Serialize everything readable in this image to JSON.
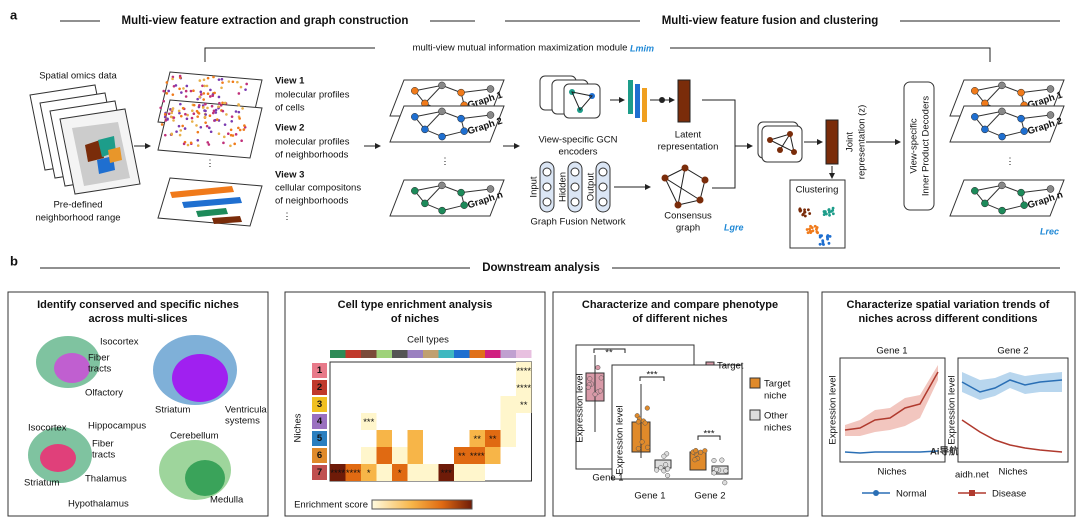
{
  "panel_a": {
    "label": "a",
    "header_left": "Multi-view feature extraction and graph construction",
    "header_right": "Multi-view feature fusion and clustering",
    "mim_module": "multi-view mutual information maximization module",
    "lmim": "Lmim",
    "spatial_title": "Spatial omics data",
    "neighborhood": [
      "Pre-defined",
      "neighborhood range"
    ],
    "views": [
      {
        "name": "View 1",
        "desc": [
          "molecular profiles",
          "of cells"
        ]
      },
      {
        "name": "View 2",
        "desc": [
          "molecular profiles",
          "of neighborhoods"
        ]
      },
      {
        "name": "View 3",
        "desc": [
          "cellular compositons",
          "of neighborhoods"
        ]
      }
    ],
    "ellipsis": "⋮",
    "graphs_left": [
      "Graph 1",
      "Graph 2",
      "Graph n"
    ],
    "gcn": [
      "View-specific GCN",
      "encoders"
    ],
    "latent": [
      "Latent",
      "representation"
    ],
    "fusion_layers": [
      "Input",
      "Hidden",
      "Output"
    ],
    "fusion_name": "Graph Fusion Network",
    "consensus": [
      "Consensus",
      "graph"
    ],
    "lgre": "Lgre",
    "joint": [
      "Joint",
      "representation (z)"
    ],
    "clustering": "Clustering",
    "decoders": [
      "View-specific",
      "Inner Product Decoders"
    ],
    "graphs_right": [
      "Graph 1",
      "Graph 2",
      "Graph n"
    ],
    "lrec": "Lrec"
  },
  "panel_b": {
    "label": "b",
    "header": "Downstream analysis",
    "niches_box": {
      "title": [
        "Identify conserved and specific niches",
        "across multi-slices"
      ],
      "labels": [
        "Isocortex",
        "Fiber",
        "tracts",
        "Olfactory",
        "Striatum",
        "Ventricula",
        "systems",
        "Isocortex",
        "Hippocampus",
        "Fiber",
        "tracts",
        "Cerebellum",
        "Striatum",
        "Thalamus",
        "Hypothalamus",
        "Medulla"
      ]
    },
    "enrichment_box": {
      "title": [
        "Cell type enrichment analysis",
        "of niches"
      ],
      "x_label": "Cell types",
      "y_label": "Niches",
      "rows": [
        "1",
        "2",
        "3",
        "4",
        "5",
        "6",
        "7"
      ],
      "stars": [
        "****",
        "****",
        "**",
        "***",
        "**",
        "**",
        "**",
        "****",
        "****",
        "****",
        "*",
        "*",
        "***"
      ],
      "colorbar_label": "Enrichment score"
    },
    "phenotype_box": {
      "title": [
        "Characterize and compare phenotype",
        "of different niches"
      ],
      "y_label": "Expression level",
      "significance": [
        "**",
        "***",
        "***"
      ],
      "legend_back": "Target",
      "legend": [
        [
          "Target",
          "niche"
        ],
        [
          "Other",
          "niches"
        ]
      ],
      "genes": [
        "Gene 1",
        "Gene 2"
      ]
    },
    "trend_box": {
      "title": [
        "Characterize spatial variation trends of",
        "niches across different conditions"
      ],
      "genes": [
        "Gene 1",
        "Gene 2"
      ],
      "y_label": "Expression level",
      "x_label": "Niches",
      "legend": [
        "Normal",
        "Disease"
      ]
    }
  },
  "watermark": [
    "Ai导航",
    "aidh.net"
  ]
}
